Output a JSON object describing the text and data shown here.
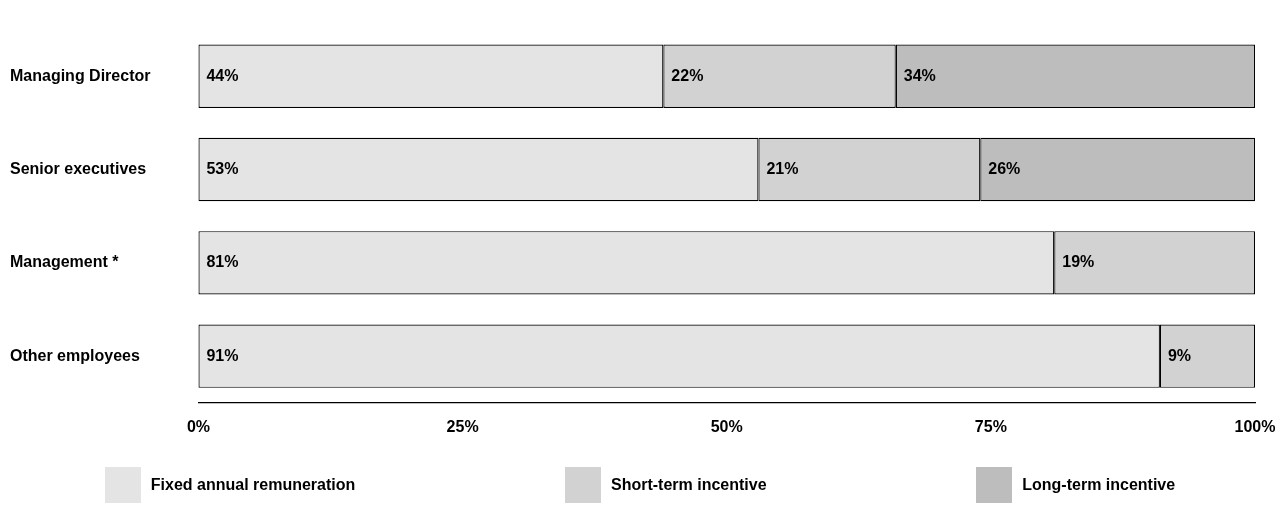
{
  "chart_data": {
    "type": "bar",
    "orientation": "horizontal",
    "stacked": true,
    "categories": [
      "Managing Director",
      "Senior executives",
      "Management *",
      "Other employees"
    ],
    "series": [
      {
        "name": "Fixed annual remuneration",
        "color": "#e4e4e4",
        "values": [
          44,
          53,
          81,
          91
        ],
        "value_labels": [
          "44%",
          "53%",
          "81%",
          "91%"
        ]
      },
      {
        "name": "Short-term incentive",
        "color": "#d2d2d2",
        "values": [
          22,
          21,
          19,
          9
        ],
        "value_labels": [
          "22%",
          "21%",
          "19%",
          "9%"
        ]
      },
      {
        "name": "Long-term incentive",
        "color": "#bdbdbd",
        "values": [
          34,
          26,
          null,
          null
        ],
        "value_labels": [
          "34%",
          "26%",
          null,
          null
        ]
      }
    ],
    "xlim": [
      0,
      100
    ],
    "xticks": [
      {
        "value": 0,
        "label": "0%"
      },
      {
        "value": 25,
        "label": "25%"
      },
      {
        "value": 50,
        "label": "50%"
      },
      {
        "value": 75,
        "label": "75%"
      },
      {
        "value": 100,
        "label": "100%"
      }
    ],
    "legend": "bottom"
  }
}
